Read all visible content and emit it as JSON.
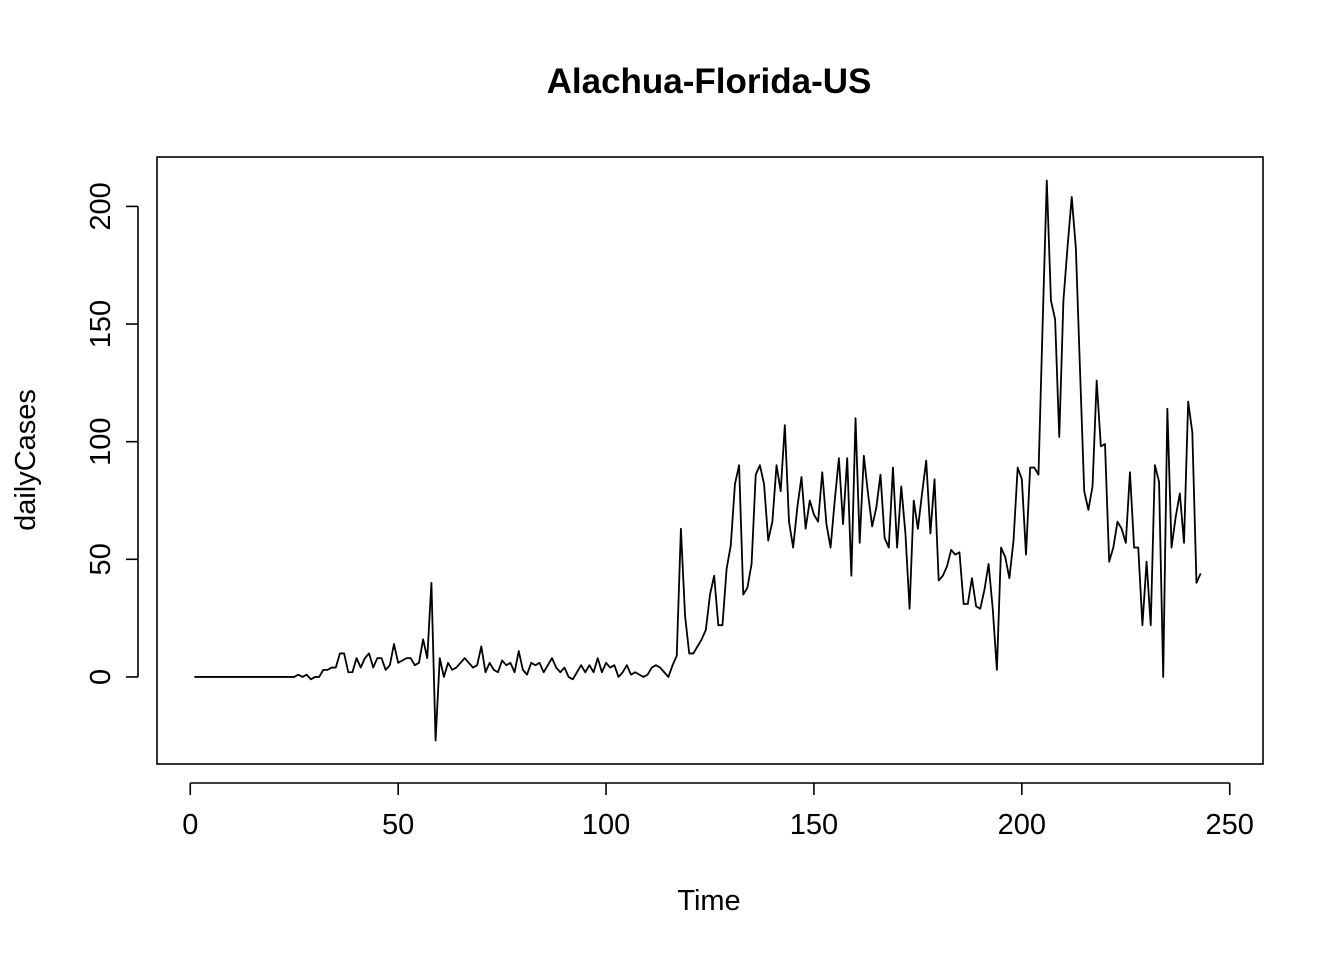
{
  "chart_data": {
    "type": "line",
    "title": "Alachua-Florida-US",
    "xlabel": "Time",
    "ylabel": "dailyCases",
    "xlim": [
      -8,
      258
    ],
    "ylim": [
      -37,
      221
    ],
    "xticks": [
      0,
      50,
      100,
      150,
      200,
      250
    ],
    "yticks": [
      0,
      50,
      100,
      150,
      200
    ],
    "xtick_labels": [
      "0",
      "50",
      "100",
      "150",
      "200",
      "250"
    ],
    "ytick_labels": [
      "0",
      "50",
      "100",
      "150",
      "200"
    ],
    "grid": false,
    "legend": "none",
    "line_color": "#000000",
    "x_start": 1,
    "series": [
      {
        "values": [
          0,
          0,
          0,
          0,
          0,
          0,
          0,
          0,
          0,
          0,
          0,
          0,
          0,
          0,
          0,
          0,
          0,
          0,
          0,
          0,
          0,
          0,
          0,
          0,
          0,
          1,
          0,
          1,
          -1,
          0,
          0,
          3,
          3,
          4,
          4,
          10,
          10,
          2,
          2,
          8,
          4,
          8,
          10,
          4,
          8,
          8,
          3,
          5,
          14,
          6,
          7,
          8,
          8,
          5,
          6,
          16,
          8,
          40,
          -27,
          8,
          0,
          6,
          3,
          4,
          6,
          8,
          6,
          4,
          5,
          13,
          2,
          6,
          3,
          2,
          7,
          5,
          6,
          2,
          11,
          3,
          1,
          6,
          5,
          6,
          2,
          5,
          8,
          4,
          2,
          4,
          0,
          -1,
          2,
          5,
          2,
          5,
          2,
          8,
          2,
          6,
          4,
          5,
          0,
          2,
          5,
          1,
          2,
          1,
          0,
          1,
          4,
          5,
          4,
          2,
          0,
          5,
          9,
          63,
          26,
          10,
          10,
          13,
          16,
          20,
          35,
          43,
          22,
          22,
          46,
          56,
          82,
          90,
          35,
          38,
          48,
          86,
          90,
          82,
          58,
          66,
          90,
          79,
          107,
          66,
          55,
          72,
          85,
          63,
          75,
          69,
          66,
          87,
          65,
          55,
          75,
          93,
          65,
          93,
          43,
          110,
          57,
          94,
          78,
          64,
          72,
          86,
          59,
          55,
          89,
          55,
          81,
          61,
          29,
          75,
          63,
          78,
          92,
          61,
          84,
          41,
          43,
          47,
          54,
          52,
          53,
          31,
          31,
          42,
          30,
          29,
          37,
          48,
          29,
          3,
          55,
          51,
          42,
          58,
          89,
          84,
          52,
          89,
          89,
          86,
          150,
          211,
          160,
          152,
          102,
          160,
          183,
          204,
          182,
          130,
          79,
          71,
          81,
          126,
          98,
          99,
          49,
          55,
          66,
          63,
          57,
          87,
          55,
          55,
          22,
          49,
          22,
          90,
          83,
          0,
          114,
          55,
          68,
          78,
          57,
          117,
          104,
          40,
          44
        ]
      }
    ]
  }
}
